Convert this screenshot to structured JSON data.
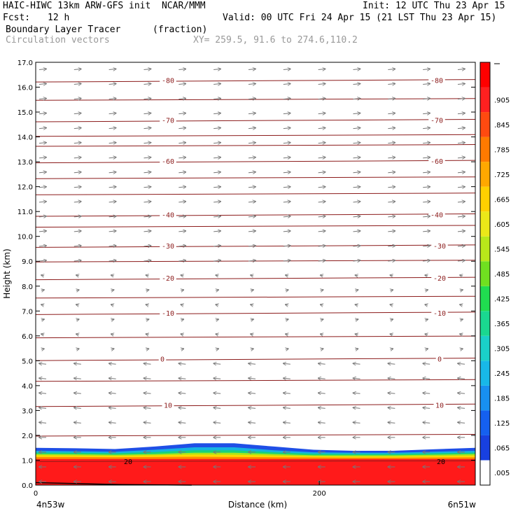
{
  "header": {
    "title_left": "HAIC-HIWC 13km ARW-GFS init  NCAR/MMM",
    "init": "Init: 12 UTC Thu 23 Apr 15",
    "fcst_label": "Fcst:",
    "fcst_value": "12 h",
    "valid": "Valid: 00 UTC Fri 24 Apr 15 (21 LST Thu 23 Apr 15)",
    "field_name": "Boundary Layer Tracer",
    "field_units": "(fraction)",
    "vector_field": "Circulation vectors",
    "xy_range": "XY= 259.5, 91.6 to 274.6,110.2"
  },
  "chart_data": {
    "type": "heatmap",
    "title": "Boundary Layer Tracer",
    "ylabel": "Height (km)",
    "xlabel": "Distance (km)",
    "xlim": [
      0,
      310
    ],
    "ylim": [
      0.0,
      17.0
    ],
    "y_ticks": [
      "0.0",
      "1.0",
      "2.0",
      "3.0",
      "4.0",
      "5.0",
      "6.0",
      "7.0",
      "8.0",
      "9.0",
      "10.0",
      "11.0",
      "12.0",
      "13.0",
      "14.0",
      "15.0",
      "16.0",
      "17.0"
    ],
    "x_ticks": [
      {
        "value": 0,
        "label": "0"
      },
      {
        "value": 200,
        "label": "200"
      }
    ],
    "x_left_label": "4n53w",
    "x_right_label": "6n51w",
    "tracer_layers": [
      {
        "color": "#ff1a1a",
        "top": [
          1.05,
          1.05,
          1.05,
          1.05,
          1.05,
          1.05,
          1.05,
          1.05,
          1.05,
          1.05,
          1.05,
          1.05
        ]
      },
      {
        "color": "#ff8c00",
        "top": [
          1.13,
          1.13,
          1.12,
          1.13,
          1.14,
          1.13,
          1.12,
          1.11,
          1.1,
          1.1,
          1.11,
          1.12
        ]
      },
      {
        "color": "#ffd800",
        "top": [
          1.2,
          1.19,
          1.18,
          1.2,
          1.23,
          1.22,
          1.19,
          1.16,
          1.15,
          1.15,
          1.17,
          1.19
        ]
      },
      {
        "color": "#a8e61a",
        "top": [
          1.25,
          1.24,
          1.22,
          1.25,
          1.3,
          1.3,
          1.25,
          1.2,
          1.2,
          1.2,
          1.22,
          1.25
        ]
      },
      {
        "color": "#1ad27a",
        "top": [
          1.31,
          1.3,
          1.28,
          1.33,
          1.4,
          1.4,
          1.32,
          1.26,
          1.25,
          1.25,
          1.28,
          1.31
        ]
      },
      {
        "color": "#16b3e0",
        "top": [
          1.38,
          1.36,
          1.34,
          1.42,
          1.52,
          1.52,
          1.4,
          1.32,
          1.3,
          1.3,
          1.34,
          1.38
        ]
      },
      {
        "color": "#1f4fe6",
        "top": [
          1.5,
          1.48,
          1.45,
          1.55,
          1.68,
          1.68,
          1.55,
          1.42,
          1.38,
          1.38,
          1.44,
          1.5
        ]
      }
    ],
    "profile_x": [
      0,
      28,
      56,
      84,
      112,
      140,
      168,
      196,
      224,
      252,
      280,
      310
    ],
    "temperature_contours": [
      {
        "label": "10",
        "height": 3.2
      },
      {
        "label": "0",
        "height": 5.05
      },
      {
        "label": "-10",
        "height": 6.9
      },
      {
        "label": "-20",
        "height": 8.3
      },
      {
        "label": "-30",
        "height": 9.6
      },
      {
        "label": "-40",
        "height": 10.85
      },
      {
        "label": "-60",
        "height": 13.0
      },
      {
        "label": "-70",
        "height": 14.65
      },
      {
        "label": "-80",
        "height": 16.25
      }
    ],
    "contour_label_near_surface": "20",
    "colorbar": {
      "labels": [
        ".005",
        ".065",
        ".125",
        ".185",
        ".245",
        ".305",
        ".365",
        ".425",
        ".485",
        ".545",
        ".605",
        ".665",
        ".725",
        ".785",
        ".845",
        ".905"
      ],
      "colors": [
        "#ffffff",
        "#1840e0",
        "#1560f0",
        "#1890f0",
        "#18b8e8",
        "#1ad0c8",
        "#1ad890",
        "#20dc50",
        "#70e020",
        "#b8e81a",
        "#ece818",
        "#ffd000",
        "#ffa800",
        "#ff7a00",
        "#ff4a10",
        "#ff2020",
        "#ff0000"
      ]
    }
  }
}
